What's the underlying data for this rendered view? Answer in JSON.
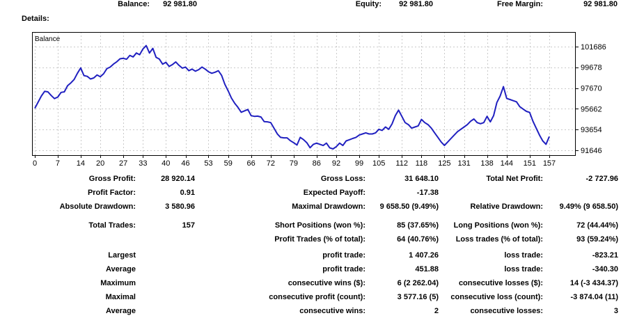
{
  "header": {
    "balance_label": "Balance:",
    "balance_value": "92 981.80",
    "equity_label": "Equity:",
    "equity_value": "92 981.80",
    "free_margin_label": "Free Margin:",
    "free_margin_value": "92 981.80"
  },
  "details_label": "Details:",
  "chart_data": {
    "type": "line",
    "title": "Balance",
    "legend": "Balance",
    "xlabel": "",
    "ylabel": "",
    "grid": true,
    "legend_position": "top-left-inside",
    "y_axis_side": "right",
    "line_color": "#2020c0",
    "grid_color": "#c9c9c9",
    "xticks": [
      0,
      7,
      14,
      20,
      27,
      33,
      40,
      46,
      53,
      59,
      66,
      72,
      79,
      86,
      92,
      99,
      105,
      112,
      118,
      125,
      131,
      138,
      144,
      151,
      157
    ],
    "yticks": [
      91646,
      93654,
      95662,
      97670,
      99678,
      101686
    ],
    "xlim": [
      -0.85,
      164.86
    ],
    "ylim": [
      91177,
      103091
    ],
    "series": [
      {
        "name": "Balance",
        "x_is_trade_index": true,
        "values": [
          95710,
          96300,
          96900,
          97350,
          97300,
          96950,
          96650,
          96800,
          97250,
          97300,
          97900,
          98170,
          98500,
          99100,
          99620,
          98880,
          98800,
          98550,
          98650,
          98930,
          98760,
          99050,
          99550,
          99700,
          99990,
          100210,
          100500,
          100550,
          100460,
          100830,
          100680,
          101060,
          100900,
          101450,
          101780,
          101060,
          101510,
          100640,
          100470,
          99980,
          100160,
          99760,
          99940,
          100200,
          99870,
          99600,
          99700,
          99350,
          99500,
          99300,
          99450,
          99700,
          99500,
          99250,
          99100,
          99200,
          99350,
          98900,
          98030,
          97400,
          96700,
          96200,
          95800,
          95330,
          95465,
          95600,
          95000,
          94930,
          94950,
          94870,
          94420,
          94400,
          94330,
          93790,
          93240,
          92900,
          92850,
          92850,
          92580,
          92380,
          92160,
          92900,
          92680,
          92380,
          91900,
          92230,
          92340,
          92230,
          92110,
          92340,
          91890,
          91780,
          92000,
          92340,
          92110,
          92560,
          92670,
          92790,
          92900,
          93120,
          93230,
          93340,
          93230,
          93230,
          93340,
          93680,
          93570,
          93900,
          93680,
          94200,
          95000,
          95530,
          94930,
          94330,
          94130,
          93790,
          93900,
          94010,
          94640,
          94330,
          94130,
          93790,
          93340,
          92900,
          92450,
          92120,
          92450,
          92790,
          93120,
          93450,
          93680,
          93900,
          94130,
          94460,
          94680,
          94330,
          94220,
          94330,
          94930,
          94400,
          95000,
          96270,
          96900,
          97810,
          96670,
          96560,
          96450,
          96340,
          95870,
          95640,
          95420,
          95310,
          94460,
          93790,
          93120,
          92560,
          92230,
          92982
        ]
      }
    ]
  },
  "stats": {
    "rows": [
      [
        "Gross Profit:",
        "28 920.14",
        "Gross Loss:",
        "31 648.10",
        "Total Net Profit:",
        "-2 727.96"
      ],
      [
        "Profit Factor:",
        "0.91",
        "Expected Payoff:",
        "-17.38",
        "",
        ""
      ],
      [
        "Absolute Drawdown:",
        "3 580.96",
        "Maximal Drawdown:",
        "9 658.50 (9.49%)",
        "Relative Drawdown:",
        "9.49% (9 658.50)"
      ],
      [
        "Total Trades:",
        "157",
        "Short Positions (won %):",
        "85 (37.65%)",
        "Long Positions (won %):",
        "72 (44.44%)"
      ],
      [
        "",
        "",
        "Profit Trades (% of total):",
        "64 (40.76%)",
        "Loss trades (% of total):",
        "93 (59.24%)"
      ],
      [
        "Largest",
        "",
        "profit trade:",
        "1 407.26",
        "loss trade:",
        "-823.21"
      ],
      [
        "Average",
        "",
        "profit trade:",
        "451.88",
        "loss trade:",
        "-340.30"
      ],
      [
        "Maximum",
        "",
        "consecutive wins ($):",
        "6 (2 262.04)",
        "consecutive losses ($):",
        "14 (-3 434.37)"
      ],
      [
        "Maximal",
        "",
        "consecutive profit (count):",
        "3 577.16 (5)",
        "consecutive loss (count):",
        "-3 874.04 (11)"
      ],
      [
        "Average",
        "",
        "consecutive wins:",
        "2",
        "consecutive losses:",
        "3"
      ]
    ]
  }
}
